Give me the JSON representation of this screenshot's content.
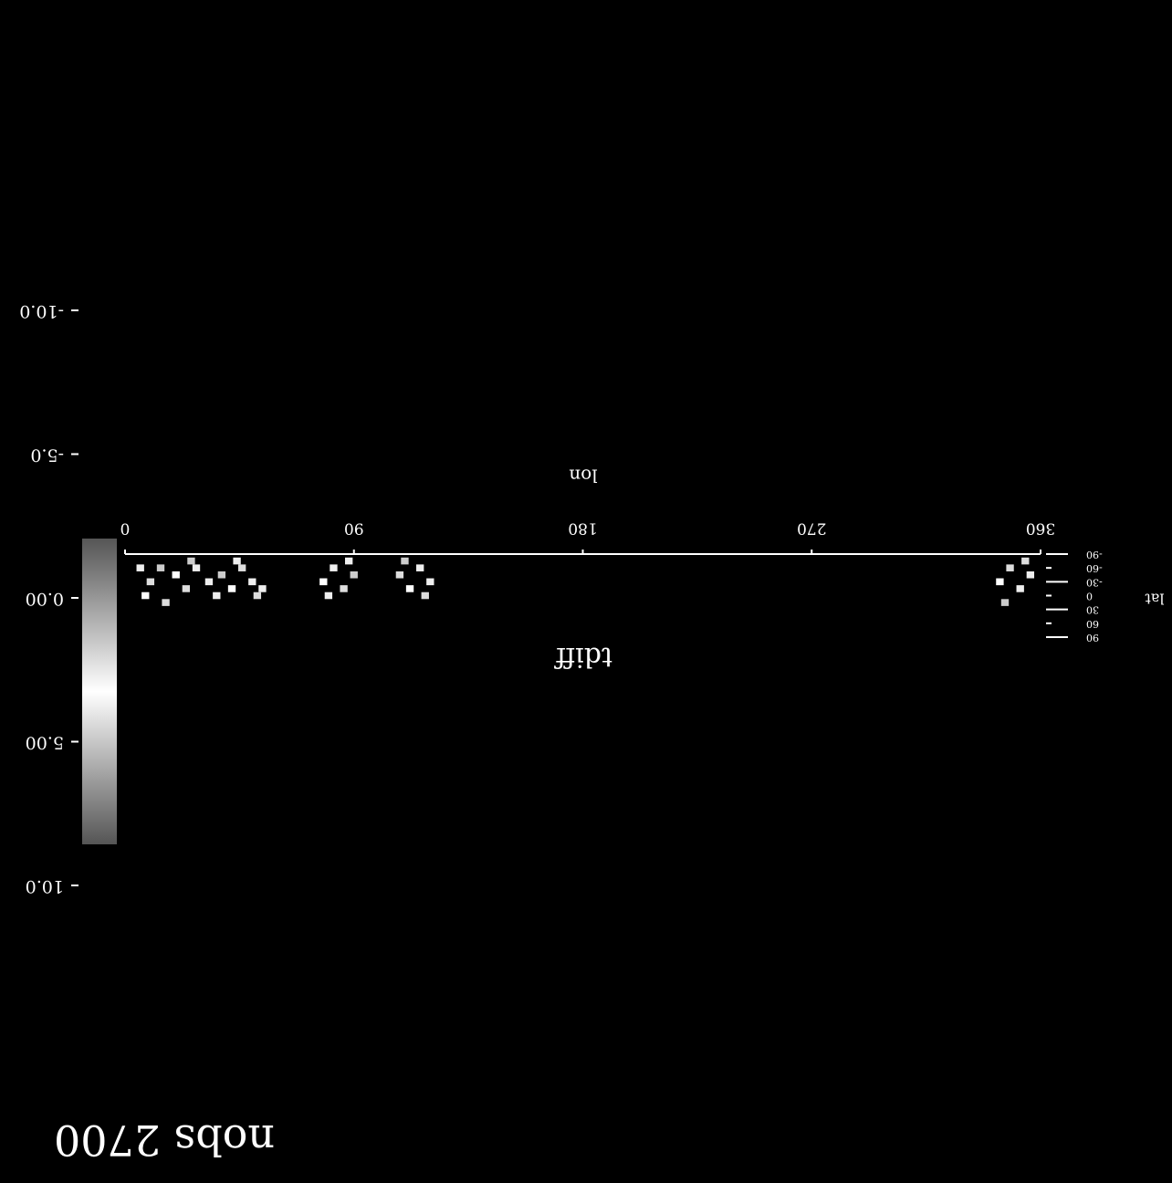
{
  "chart_data": {
    "type": "heatmap",
    "title": "tdiff",
    "xlabel": "lon",
    "ylabel": "lat",
    "xlim": [
      0,
      360
    ],
    "xticks": [
      0,
      90,
      180,
      270,
      360
    ],
    "ylim": [
      -90,
      90
    ],
    "yticks": [
      -90,
      -60,
      -30,
      0,
      30,
      60,
      90
    ],
    "colorbar": {
      "lim": [
        -10,
        10
      ],
      "ticks": [
        {
          "value": -10,
          "label": "-10.0"
        },
        {
          "value": -5,
          "label": "-5.0"
        },
        {
          "value": 0,
          "label": "0.00"
        },
        {
          "value": 5,
          "label": "5.00"
        },
        {
          "value": 10,
          "label": "10.0"
        }
      ]
    },
    "cells": {
      "lon": [
        6,
        10,
        14,
        20,
        24,
        28,
        33,
        38,
        42,
        46,
        50,
        54,
        8,
        16,
        26,
        36,
        44,
        52,
        78,
        82,
        86,
        90,
        80,
        88,
        108,
        112,
        116,
        120,
        110,
        118,
        344,
        348,
        352,
        356,
        346,
        354
      ],
      "lat": [
        -60,
        -30,
        -60,
        -45,
        -15,
        -60,
        -30,
        -45,
        -15,
        -60,
        -30,
        -15,
        0,
        15,
        -75,
        0,
        -75,
        0,
        -30,
        -60,
        -15,
        -45,
        0,
        -75,
        -45,
        -15,
        -60,
        -30,
        -75,
        0,
        -30,
        -60,
        -15,
        -45,
        15,
        -75
      ],
      "values": [
        1,
        -2,
        3,
        0,
        2,
        -1,
        1,
        -3,
        0,
        2,
        -1,
        1,
        0,
        -2,
        3,
        1,
        -1,
        2,
        0,
        1,
        -2,
        3,
        1,
        -1,
        2,
        0,
        -1,
        1,
        3,
        -2,
        0,
        2,
        -1,
        1,
        -3,
        2
      ]
    },
    "annotation": "nobs 2700"
  }
}
